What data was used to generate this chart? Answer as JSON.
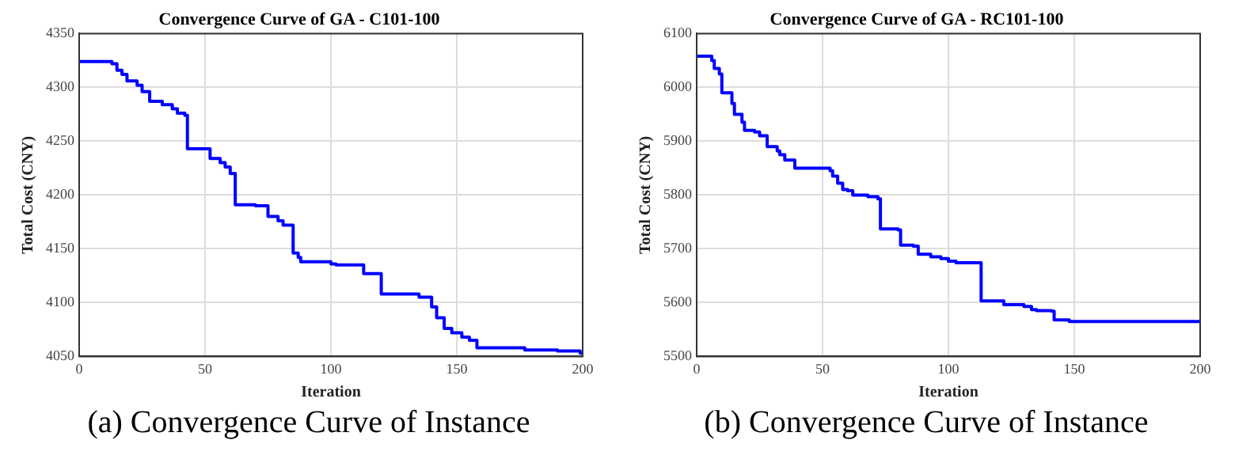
{
  "chart_data": [
    {
      "type": "step",
      "title": "Convergence Curve of GA - C101-100",
      "xlabel": "Iteration",
      "ylabel": "Total Cost (CNY)",
      "annotations": [
        "(a) Convergence Curve of Instance"
      ],
      "x": [
        0,
        13,
        15,
        17,
        19,
        23,
        25,
        28,
        33,
        37,
        39,
        42,
        43,
        52,
        56,
        58,
        60,
        62,
        70,
        75,
        79,
        81,
        85,
        87,
        88,
        100,
        102,
        113,
        120,
        135,
        140,
        142,
        145,
        148,
        152,
        155,
        158,
        170,
        177,
        190,
        199,
        200
      ],
      "values": [
        4324,
        4322,
        4316,
        4312,
        4306,
        4302,
        4296,
        4287,
        4284,
        4280,
        4276,
        4274,
        4243,
        4234,
        4230,
        4226,
        4220,
        4191,
        4190,
        4180,
        4176,
        4172,
        4146,
        4142,
        4138,
        4136,
        4135,
        4127,
        4108,
        4105,
        4096,
        4086,
        4076,
        4072,
        4068,
        4065,
        4058,
        4058,
        4056,
        4055,
        4053,
        4053
      ],
      "color": "#0000ff",
      "xlim": [
        0,
        200
      ],
      "ylim": [
        4050,
        4350
      ],
      "xticks": [
        0,
        50,
        100,
        150,
        200
      ],
      "yticks": [
        4050,
        4100,
        4150,
        4200,
        4250,
        4300,
        4350
      ],
      "grid": true
    },
    {
      "type": "step",
      "title": "Convergence Curve of GA - RC101-100",
      "xlabel": "Iteration",
      "ylabel": "Total Cost (CNY)",
      "annotations": [
        "(b) Convergence Curve of Instance"
      ],
      "x": [
        0,
        6,
        7,
        9,
        10,
        14,
        15,
        18,
        19,
        23,
        25,
        28,
        32,
        33,
        35,
        39,
        53,
        54,
        56,
        58,
        60,
        62,
        68,
        72,
        73,
        80,
        81,
        86,
        88,
        93,
        97,
        100,
        103,
        112,
        113,
        122,
        130,
        133,
        135,
        141,
        142,
        148,
        200
      ],
      "values": [
        6058,
        6050,
        6035,
        6025,
        5990,
        5970,
        5950,
        5935,
        5920,
        5917,
        5910,
        5890,
        5882,
        5875,
        5865,
        5850,
        5845,
        5835,
        5822,
        5810,
        5808,
        5800,
        5797,
        5793,
        5737,
        5735,
        5707,
        5705,
        5690,
        5685,
        5682,
        5677,
        5674,
        5674,
        5603,
        5596,
        5593,
        5587,
        5585,
        5584,
        5568,
        5565,
        5565
      ],
      "color": "#0000ff",
      "xlim": [
        0,
        200
      ],
      "ylim": [
        5500,
        6100
      ],
      "xticks": [
        0,
        50,
        100,
        150,
        200
      ],
      "yticks": [
        5500,
        5600,
        5700,
        5800,
        5900,
        6000,
        6100
      ],
      "grid": true
    }
  ]
}
